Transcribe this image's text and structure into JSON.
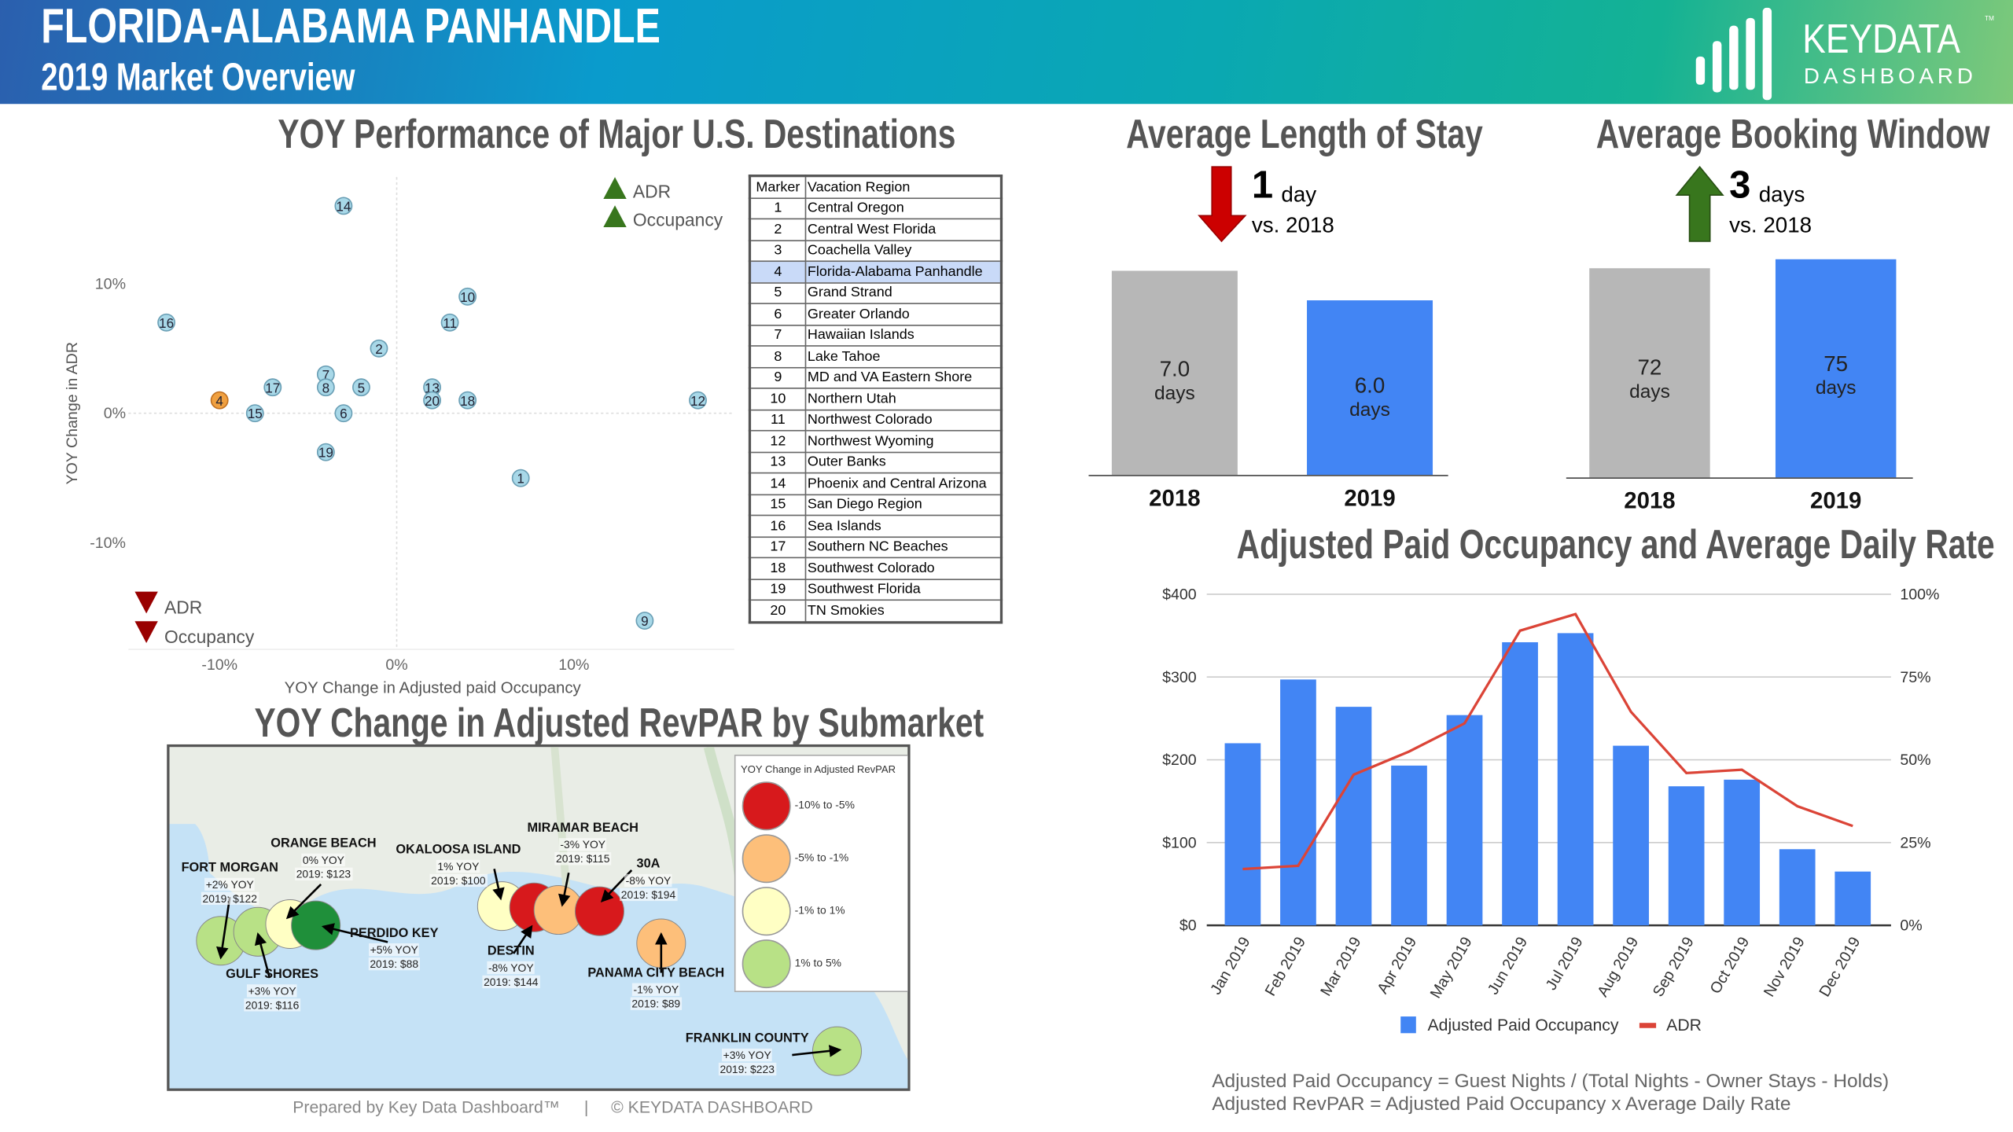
{
  "header": {
    "title": "FLORIDA-ALABAMA PANHANDLE",
    "subtitle": "2019 Market Overview",
    "logo": {
      "line1": "KEYDATA",
      "line2": "DASHBOARD",
      "tm": "TM"
    }
  },
  "colors": {
    "blue": "#4285f4",
    "gray": "#b7b7b7",
    "red": "#cc0000",
    "green": "#38761d",
    "line": "#db4437",
    "marker": "#a8d8e8",
    "highlight_marker": "#f0a040"
  },
  "scatter": {
    "title": "YOY Performance of Major U.S. Destinations",
    "chart_data": {
      "type": "scatter",
      "xlabel": "YOY Change in Adjusted paid Occupancy",
      "ylabel": "YOY Change in ADR",
      "xticks": [
        "-10%",
        "0%",
        "10%"
      ],
      "yticks": [
        "10%",
        "0%",
        "-10%"
      ],
      "xlim": [
        -15,
        19
      ],
      "ylim": [
        -18,
        18
      ],
      "grid": "zero-lines",
      "points": [
        {
          "marker": "1",
          "x": 7,
          "y": -5
        },
        {
          "marker": "2",
          "x": -1,
          "y": 5
        },
        {
          "marker": "4",
          "x": -10,
          "y": 1,
          "highlight": true
        },
        {
          "marker": "5",
          "x": -2,
          "y": 2
        },
        {
          "marker": "6",
          "x": -3,
          "y": 0
        },
        {
          "marker": "7",
          "x": -4,
          "y": 3
        },
        {
          "marker": "8",
          "x": -4,
          "y": 2
        },
        {
          "marker": "9",
          "x": 14,
          "y": -16
        },
        {
          "marker": "10",
          "x": 4,
          "y": 9
        },
        {
          "marker": "11",
          "x": 3,
          "y": 7
        },
        {
          "marker": "12",
          "x": 17,
          "y": 1
        },
        {
          "marker": "13",
          "x": 2,
          "y": 2
        },
        {
          "marker": "14",
          "x": -3,
          "y": 16
        },
        {
          "marker": "15",
          "x": -8,
          "y": 0
        },
        {
          "marker": "16",
          "x": -13,
          "y": 7
        },
        {
          "marker": "17",
          "x": -7,
          "y": 2
        },
        {
          "marker": "18",
          "x": 4,
          "y": 1
        },
        {
          "marker": "19",
          "x": -4,
          "y": -3
        },
        {
          "marker": "20",
          "x": 2,
          "y": 1
        }
      ]
    },
    "legend_up": [
      "ADR",
      "Occupancy"
    ],
    "legend_down": [
      "ADR",
      "Occupancy"
    ]
  },
  "table": {
    "headers": [
      "Marker",
      "Vacation Region"
    ],
    "rows": [
      [
        "1",
        "Central Oregon"
      ],
      [
        "2",
        "Central West Florida"
      ],
      [
        "3",
        "Coachella Valley"
      ],
      [
        "4",
        "Florida-Alabama Panhandle"
      ],
      [
        "5",
        "Grand Strand"
      ],
      [
        "6",
        "Greater Orlando"
      ],
      [
        "7",
        "Hawaiian Islands"
      ],
      [
        "8",
        "Lake Tahoe"
      ],
      [
        "9",
        "MD and VA Eastern Shore"
      ],
      [
        "10",
        "Northern Utah"
      ],
      [
        "11",
        "Northwest Colorado"
      ],
      [
        "12",
        "Northwest Wyoming"
      ],
      [
        "13",
        "Outer Banks"
      ],
      [
        "14",
        "Phoenix and Central Arizona"
      ],
      [
        "15",
        "San Diego Region"
      ],
      [
        "16",
        "Sea Islands"
      ],
      [
        "17",
        "Southern NC Beaches"
      ],
      [
        "18",
        "Southwest Colorado"
      ],
      [
        "19",
        "Southwest Florida"
      ],
      [
        "20",
        "TN Smokies"
      ]
    ],
    "highlight_row": "4"
  },
  "map": {
    "title": "YOY Change in Adjusted RevPAR by Submarket",
    "legend": {
      "title": "YOY Change in Adjusted RevPAR",
      "items": [
        {
          "label": "-10% to -5%",
          "color": "#d7191c"
        },
        {
          "label": "-5% to -1%",
          "color": "#fdbf7a"
        },
        {
          "label": "-1% to 1%",
          "color": "#ffffc4"
        },
        {
          "label": "1% to 5%",
          "color": "#b8e186"
        }
      ]
    },
    "submarkets": [
      {
        "name": "FORT MORGAN",
        "yoy": "+2% YOY",
        "rate": "2019: $122"
      },
      {
        "name": "GULF SHORES",
        "yoy": "+3% YOY",
        "rate": "2019: $116"
      },
      {
        "name": "ORANGE BEACH",
        "yoy": "0% YOY",
        "rate": "2019: $123"
      },
      {
        "name": "PERDIDO KEY",
        "yoy": "+5% YOY",
        "rate": "2019: $88"
      },
      {
        "name": "OKALOOSA ISLAND",
        "yoy": "1% YOY",
        "rate": "2019: $100"
      },
      {
        "name": "DESTIN",
        "yoy": "-8% YOY",
        "rate": "2019: $144"
      },
      {
        "name": "MIRAMAR BEACH",
        "yoy": "-3% YOY",
        "rate": "2019: $115"
      },
      {
        "name": "30A",
        "yoy": "-8% YOY",
        "rate": "2019: $194"
      },
      {
        "name": "PANAMA CITY BEACH",
        "yoy": "-1% YOY",
        "rate": "2019: $89"
      },
      {
        "name": "FRANKLIN COUNTY",
        "yoy": "+3% YOY",
        "rate": "2019: $223"
      }
    ]
  },
  "footer": {
    "prepared": "Prepared by Key Data Dashboard™",
    "sep": "|",
    "copyright": "© KEYDATA DASHBOARD"
  },
  "los": {
    "title": "Average Length of Stay",
    "change_value": "1",
    "change_unit": "day",
    "change_vs": "vs. 2018",
    "direction": "down",
    "chart_data": {
      "type": "bar",
      "categories": [
        "2018",
        "2019"
      ],
      "values": [
        7.0,
        6.0
      ],
      "labels": [
        "7.0",
        "6.0"
      ],
      "unit": "days"
    }
  },
  "booking": {
    "title": "Average Booking Window",
    "change_value": "3",
    "change_unit": "days",
    "change_vs": "vs. 2018",
    "direction": "up",
    "chart_data": {
      "type": "bar",
      "categories": [
        "2018",
        "2019"
      ],
      "values": [
        72,
        75
      ],
      "labels": [
        "72",
        "75"
      ],
      "unit": "days"
    }
  },
  "combo": {
    "title": "Adjusted Paid Occupancy and Average Daily Rate",
    "chart_data": {
      "type": "bar",
      "categories": [
        "Jan 2019",
        "Feb 2019",
        "Mar 2019",
        "Apr 2019",
        "May 2019",
        "Jun 2019",
        "Jul 2019",
        "Aug 2019",
        "Sep 2019",
        "Oct 2019",
        "Nov 2019",
        "Dec 2019"
      ],
      "left_ticks": [
        "$0",
        "$100",
        "$200",
        "$300",
        "$400"
      ],
      "right_ticks": [
        "0%",
        "25%",
        "50%",
        "75%",
        "100%"
      ],
      "ylim_left": [
        0,
        400
      ],
      "ylim_right": [
        0,
        100
      ],
      "grid": true,
      "legend": "bottom",
      "series": [
        {
          "name": "Adjusted Paid Occupancy",
          "type": "bar",
          "axis": "left",
          "values": [
            220,
            297,
            264,
            193,
            254,
            342,
            353,
            217,
            168,
            176,
            92,
            65
          ]
        },
        {
          "name": "ADR",
          "type": "line",
          "axis": "right",
          "values": [
            17,
            18,
            45.5,
            52.5,
            61,
            89,
            94,
            64.5,
            46,
            47,
            36,
            30
          ]
        }
      ]
    }
  },
  "notes": [
    "Adjusted Paid Occupancy = Guest Nights / (Total Nights - Owner Stays - Holds)",
    "Adjusted RevPAR = Adjusted Paid Occupancy x Average Daily Rate"
  ]
}
